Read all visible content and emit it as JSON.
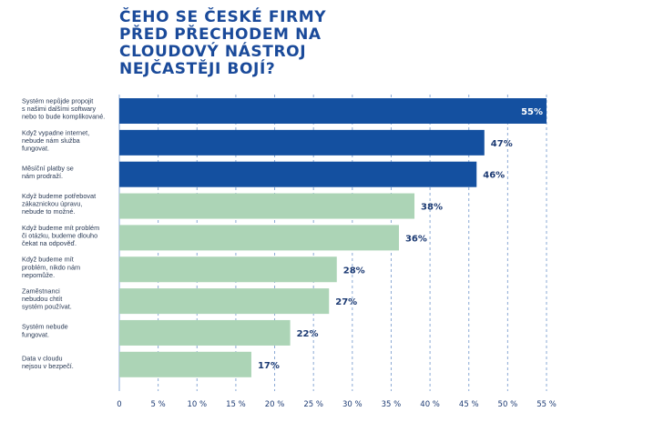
{
  "title_lines": [
    "Čeho se české firmy",
    "před přechodem na",
    "cloudový nástroj",
    "nejčastěji bojí?"
  ],
  "colors": {
    "dark_bar": "#1450a0",
    "light_bar": "#acd4b6",
    "grid": "#8aa9d4",
    "title": "#1a4a9a",
    "value_text": "#1c3a73",
    "value_text_inside": "#ffffff"
  },
  "chart_data": {
    "type": "bar",
    "orientation": "horizontal",
    "title": "Čeho se české firmy před přechodem na cloudový nástroj nejčastěji bojí?",
    "categories": [
      [
        "Systém nepůjde propojit",
        "s našimi dalšími softwary",
        "nebo to bude komplikované."
      ],
      [
        "Když vypadne internet,",
        "nebude nám služba",
        "fungovat."
      ],
      [
        "Měsíční platby se",
        "nám prodraží."
      ],
      [
        "Když budeme potřebovat",
        "zákaznickou úpravu,",
        "nebude to možné."
      ],
      [
        "Když budeme mít problém",
        "či otázku, budeme dlouho",
        "čekat na odpověď."
      ],
      [
        "Když budeme mít",
        "problém, nikdo nám",
        "nepomůže."
      ],
      [
        "Zaměstnanci",
        "nebudou chtít",
        "systém používat."
      ],
      [
        "Systém nebude",
        "fungovat."
      ],
      [
        "Data v cloudu",
        "nejsou v bezpečí."
      ]
    ],
    "values": [
      55,
      47,
      46,
      38,
      36,
      28,
      27,
      22,
      17
    ],
    "value_labels": [
      "55%",
      "47%",
      "46%",
      "38%",
      "36%",
      "28%",
      "27%",
      "22%",
      "17%"
    ],
    "highlight": [
      true,
      true,
      true,
      false,
      false,
      false,
      false,
      false,
      false
    ],
    "xlim": [
      0,
      55
    ],
    "xticks": [
      0,
      5,
      10,
      15,
      20,
      25,
      30,
      35,
      40,
      45,
      50,
      55
    ],
    "xtick_labels": [
      "0",
      "5 %",
      "10 %",
      "15 %",
      "20 %",
      "25 %",
      "30 %",
      "35 %",
      "40 %",
      "45 %",
      "50 %",
      "55 %"
    ],
    "grid": "vertical dashed",
    "xlabel": "",
    "ylabel": ""
  }
}
